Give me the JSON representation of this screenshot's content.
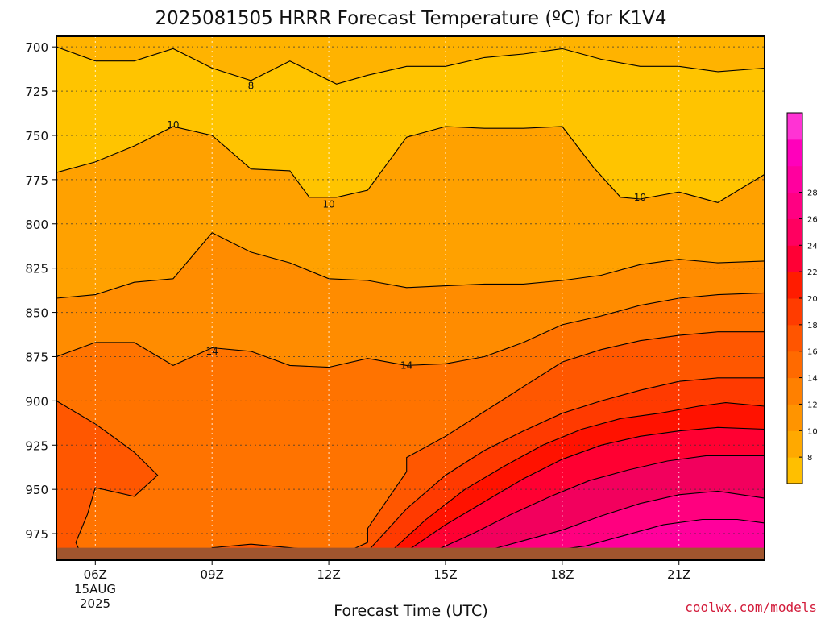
{
  "chart_data": {
    "type": "contour",
    "title": "2025081505 HRRR Forecast Temperature (ºC) for K1V4",
    "xlabel": "Forecast Time (UTC)",
    "credit": "coolwx.com/models",
    "x_ticks": [
      "06Z",
      "09Z",
      "12Z",
      "15Z",
      "18Z",
      "21Z"
    ],
    "x_tick_hours": [
      6,
      9,
      12,
      15,
      18,
      21
    ],
    "x_date_lines": [
      "15AUG",
      "2025"
    ],
    "y_ticks": [
      700,
      725,
      750,
      775,
      800,
      825,
      850,
      875,
      900,
      925,
      950,
      975
    ],
    "xlim_hours": [
      5,
      23.2
    ],
    "ylim_hpa": [
      694,
      990
    ],
    "ground_pressure_hpa": 983,
    "ground_color": "#a0552e",
    "contour_labels": [
      {
        "text": "8",
        "hour": 10.0,
        "p": 722
      },
      {
        "text": "10",
        "hour": 8.0,
        "p": 744
      },
      {
        "text": "10",
        "hour": 12.0,
        "p": 789
      },
      {
        "text": "10",
        "hour": 20.0,
        "p": 785
      },
      {
        "text": "14",
        "hour": 9.0,
        "p": 872
      },
      {
        "text": "14",
        "hour": 14.0,
        "p": 880
      }
    ],
    "contours": [
      {
        "level": 8,
        "color": "#ffc400",
        "points": [
          [
            5.0,
            700
          ],
          [
            6.0,
            708
          ],
          [
            7.0,
            708
          ],
          [
            8.0,
            701
          ],
          [
            9.0,
            712
          ],
          [
            10.0,
            719
          ],
          [
            11.0,
            708
          ],
          [
            12.2,
            721
          ],
          [
            13.0,
            716
          ],
          [
            14.0,
            711
          ],
          [
            15.0,
            711
          ],
          [
            16.0,
            706
          ],
          [
            17.0,
            704
          ],
          [
            18.0,
            701
          ],
          [
            19.0,
            707
          ],
          [
            20.0,
            711
          ],
          [
            21.0,
            711
          ],
          [
            22.0,
            714
          ],
          [
            23.2,
            712
          ]
        ]
      },
      {
        "level": 10,
        "color": "#ffa100",
        "points": [
          [
            5.0,
            771
          ],
          [
            6.0,
            765
          ],
          [
            7.0,
            756
          ],
          [
            8.0,
            745
          ],
          [
            9.0,
            750
          ],
          [
            10.0,
            769
          ],
          [
            11.0,
            770
          ],
          [
            11.5,
            785
          ],
          [
            12.2,
            785
          ],
          [
            13.0,
            781
          ],
          [
            14.0,
            751
          ],
          [
            15.0,
            745
          ],
          [
            16.0,
            746
          ],
          [
            17.0,
            746
          ],
          [
            18.0,
            745
          ],
          [
            18.8,
            768
          ],
          [
            19.5,
            785
          ],
          [
            20.0,
            786
          ],
          [
            21.0,
            782
          ],
          [
            22.0,
            788
          ],
          [
            23.2,
            772
          ]
        ]
      },
      {
        "level": 12,
        "color": "#ff8c00",
        "points": [
          [
            5.0,
            842
          ],
          [
            6.0,
            840
          ],
          [
            7.0,
            833
          ],
          [
            8.0,
            831
          ],
          [
            9.0,
            805
          ],
          [
            10.0,
            816
          ],
          [
            11.0,
            822
          ],
          [
            12.0,
            831
          ],
          [
            13.0,
            832
          ],
          [
            14.0,
            836
          ],
          [
            15.0,
            835
          ],
          [
            16.0,
            834
          ],
          [
            17.0,
            834
          ],
          [
            18.0,
            832
          ],
          [
            19.0,
            829
          ],
          [
            20.0,
            823
          ],
          [
            21.0,
            820
          ],
          [
            22.0,
            822
          ],
          [
            23.2,
            821
          ]
        ]
      },
      {
        "level": 14,
        "color": "#ff7300",
        "points": [
          [
            5.0,
            875
          ],
          [
            6.0,
            867
          ],
          [
            7.0,
            867
          ],
          [
            8.0,
            880
          ],
          [
            9.0,
            870
          ],
          [
            10.0,
            872
          ],
          [
            11.0,
            880
          ],
          [
            12.0,
            881
          ],
          [
            13.0,
            876
          ],
          [
            14.0,
            880
          ],
          [
            15.0,
            879
          ],
          [
            16.0,
            875
          ],
          [
            17.0,
            867
          ],
          [
            18.0,
            857
          ],
          [
            19.0,
            852
          ],
          [
            20.0,
            846
          ],
          [
            21.0,
            842
          ],
          [
            22.0,
            840
          ],
          [
            23.2,
            839
          ]
        ]
      },
      {
        "level": 16,
        "color": "#ff5700",
        "points": [
          [
            5.0,
            900
          ],
          [
            6.0,
            913
          ],
          [
            7.0,
            929
          ],
          [
            7.6,
            942
          ],
          [
            7.0,
            954
          ],
          [
            6.0,
            949
          ],
          [
            5.8,
            964
          ],
          [
            5.5,
            980
          ],
          [
            5.6,
            985
          ],
          [
            6.0,
            988
          ],
          [
            9.0,
            988
          ],
          [
            9.0,
            983
          ],
          [
            10.0,
            981
          ],
          [
            11.0,
            983
          ],
          [
            12.0,
            985
          ],
          [
            12.5,
            985
          ],
          [
            13.0,
            980
          ],
          [
            13.0,
            972
          ],
          [
            14.0,
            940
          ],
          [
            14.0,
            932
          ],
          [
            15.0,
            920
          ],
          [
            16.0,
            906
          ],
          [
            17.0,
            892
          ],
          [
            18.0,
            878
          ],
          [
            19.0,
            871
          ],
          [
            20.0,
            866
          ],
          [
            21.0,
            863
          ],
          [
            22.0,
            861
          ],
          [
            23.2,
            861
          ]
        ]
      },
      {
        "level": 18,
        "color": "#ff3a00",
        "points": [
          [
            13.0,
            985
          ],
          [
            14.0,
            961
          ],
          [
            15.0,
            942
          ],
          [
            16.0,
            928
          ],
          [
            17.0,
            917
          ],
          [
            18.0,
            907
          ],
          [
            19.0,
            900
          ],
          [
            20.0,
            894
          ],
          [
            21.0,
            889
          ],
          [
            22.0,
            887
          ],
          [
            23.2,
            887
          ]
        ]
      },
      {
        "level": 20,
        "color": "#ff1200",
        "points": [
          [
            13.6,
            985
          ],
          [
            14.5,
            967
          ],
          [
            15.5,
            950
          ],
          [
            16.5,
            937
          ],
          [
            17.5,
            925
          ],
          [
            18.5,
            916
          ],
          [
            19.5,
            910
          ],
          [
            20.5,
            907
          ],
          [
            21.5,
            903
          ],
          [
            22.2,
            901
          ],
          [
            23.2,
            903
          ]
        ]
      },
      {
        "level": 22,
        "color": "#ff0032",
        "points": [
          [
            14.0,
            985
          ],
          [
            15.0,
            970
          ],
          [
            16.0,
            957
          ],
          [
            17.0,
            944
          ],
          [
            18.0,
            933
          ],
          [
            19.0,
            925
          ],
          [
            20.0,
            920
          ],
          [
            21.0,
            917
          ],
          [
            22.0,
            915
          ],
          [
            23.2,
            916
          ]
        ]
      },
      {
        "level": 24,
        "color": "#f2005d",
        "points": [
          [
            14.7,
            985
          ],
          [
            15.7,
            975
          ],
          [
            16.7,
            964
          ],
          [
            17.7,
            954
          ],
          [
            18.7,
            945
          ],
          [
            19.7,
            939
          ],
          [
            20.7,
            934
          ],
          [
            21.7,
            931
          ],
          [
            22.5,
            931
          ],
          [
            23.2,
            931
          ]
        ]
      },
      {
        "level": 26,
        "color": "#ff007f",
        "points": [
          [
            16.0,
            985
          ],
          [
            17.0,
            979
          ],
          [
            18.0,
            973
          ],
          [
            19.0,
            965
          ],
          [
            20.0,
            958
          ],
          [
            21.0,
            953
          ],
          [
            22.0,
            951
          ],
          [
            23.2,
            955
          ]
        ]
      },
      {
        "level": 28,
        "color": "#ff009c",
        "points": [
          [
            17.6,
            985
          ],
          [
            18.6,
            982
          ],
          [
            19.6,
            976
          ],
          [
            20.6,
            970
          ],
          [
            21.6,
            967
          ],
          [
            22.5,
            967
          ],
          [
            23.2,
            969
          ]
        ]
      }
    ],
    "background_color": "#ffb300",
    "colorbar": {
      "labels": [
        "8",
        "10",
        "12",
        "14",
        "16",
        "18",
        "20",
        "22",
        "24",
        "26",
        "28"
      ],
      "colors": [
        "#ffbf00",
        "#ffa900",
        "#ff9400",
        "#ff8000",
        "#ff6a00",
        "#ff5500",
        "#ff3c00",
        "#ff1c00",
        "#ff0035",
        "#ff0060",
        "#ff0082",
        "#ff009e",
        "#ff00bb",
        "#ff33d4"
      ]
    }
  }
}
